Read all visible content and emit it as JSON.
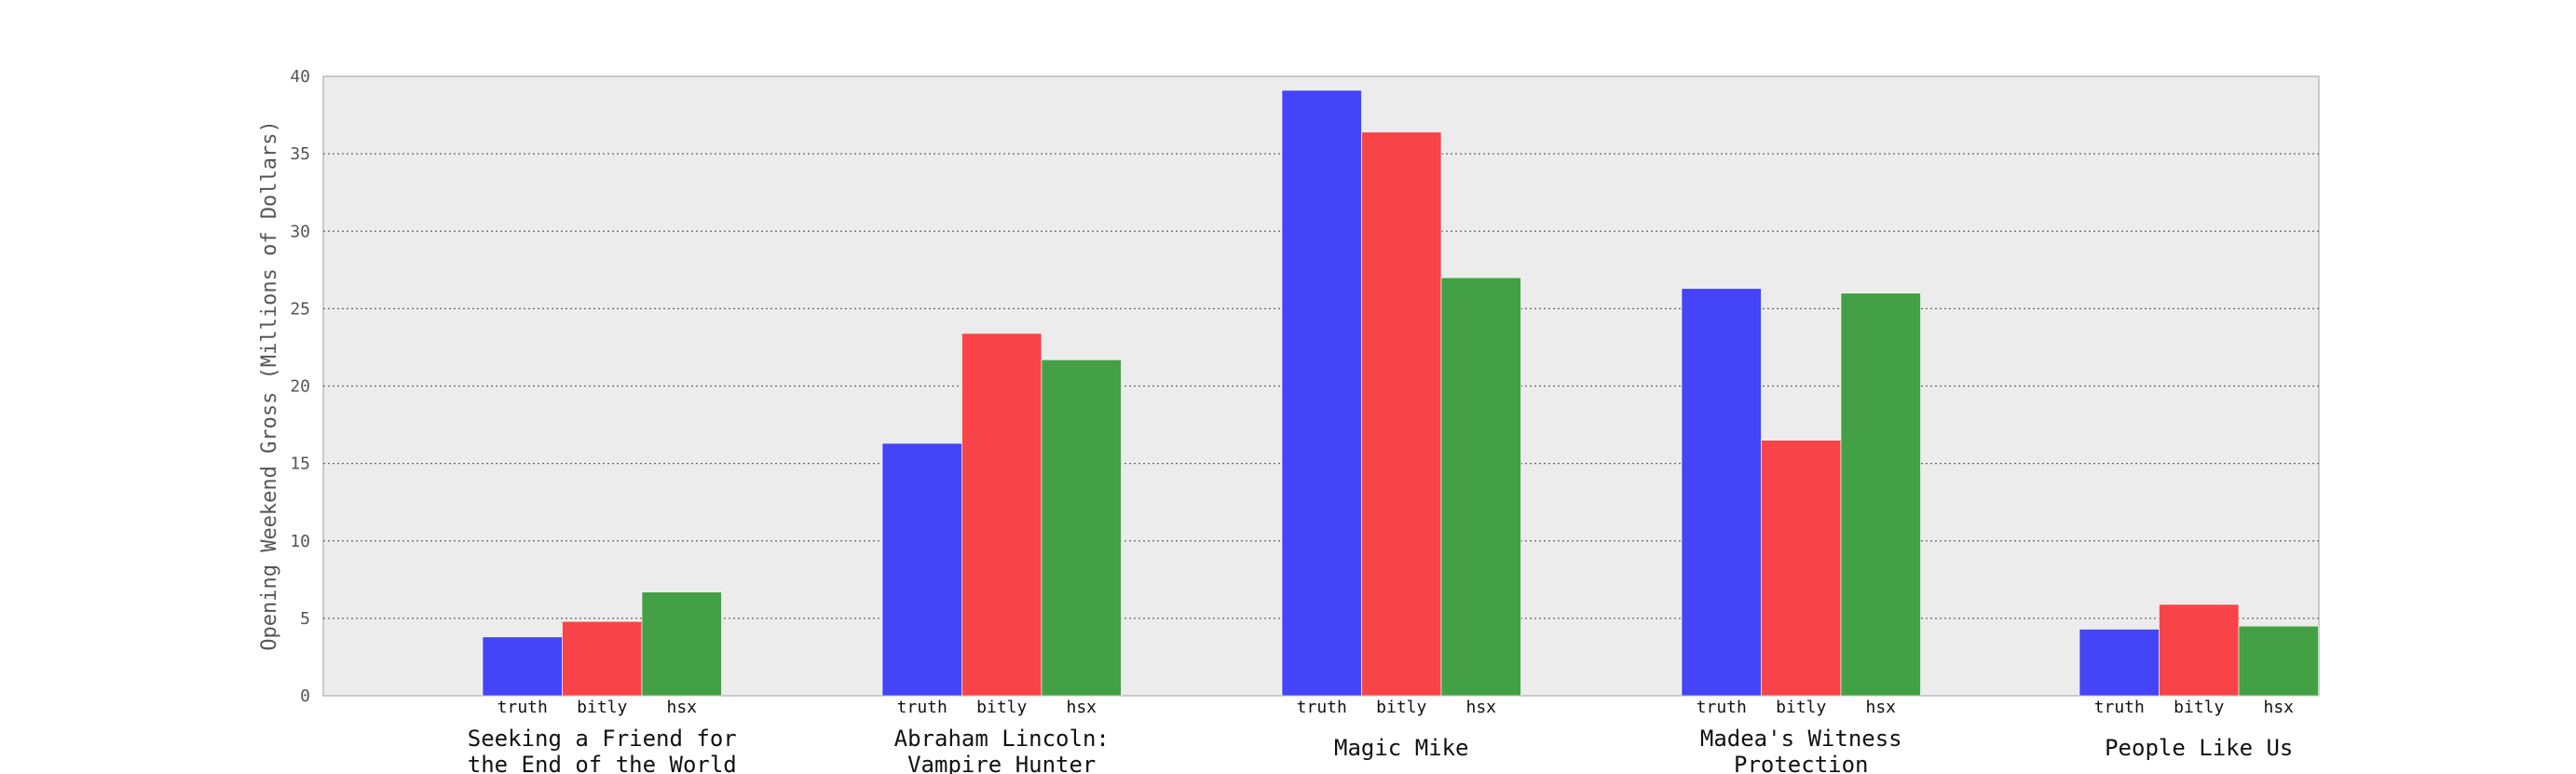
{
  "chart_data": {
    "type": "bar",
    "title": "",
    "xlabel": "",
    "ylabel": "Opening Weekend Gross (Millions of Dollars)",
    "ylim": [
      0,
      40
    ],
    "yticks": [
      0,
      5,
      10,
      15,
      20,
      25,
      30,
      35,
      40
    ],
    "grid": "y-dotted",
    "legend": "none",
    "categories": [
      [
        "Seeking a Friend for",
        "the End of the World"
      ],
      [
        "Abraham  Lincoln:",
        "Vampire Hunter"
      ],
      [
        "Magic Mike"
      ],
      [
        "Madea's Witness",
        "Protection"
      ],
      [
        "People Like Us"
      ]
    ],
    "bar_labels": [
      "truth",
      "bitly",
      "hsx"
    ],
    "series": [
      {
        "label": "truth",
        "color": "#4444f8",
        "values": [
          3.8,
          16.3,
          39.1,
          26.3,
          4.3
        ]
      },
      {
        "label": "bitly",
        "color": "#f84448",
        "values": [
          4.8,
          23.4,
          36.4,
          16.5,
          5.9
        ]
      },
      {
        "label": "hsx",
        "color": "#44a044",
        "values": [
          6.7,
          21.7,
          27.0,
          26.0,
          4.5
        ]
      }
    ],
    "colors": {
      "plot_background": "#ececec",
      "axes_edge": "#bbbbbb",
      "grid": "#666666"
    }
  }
}
